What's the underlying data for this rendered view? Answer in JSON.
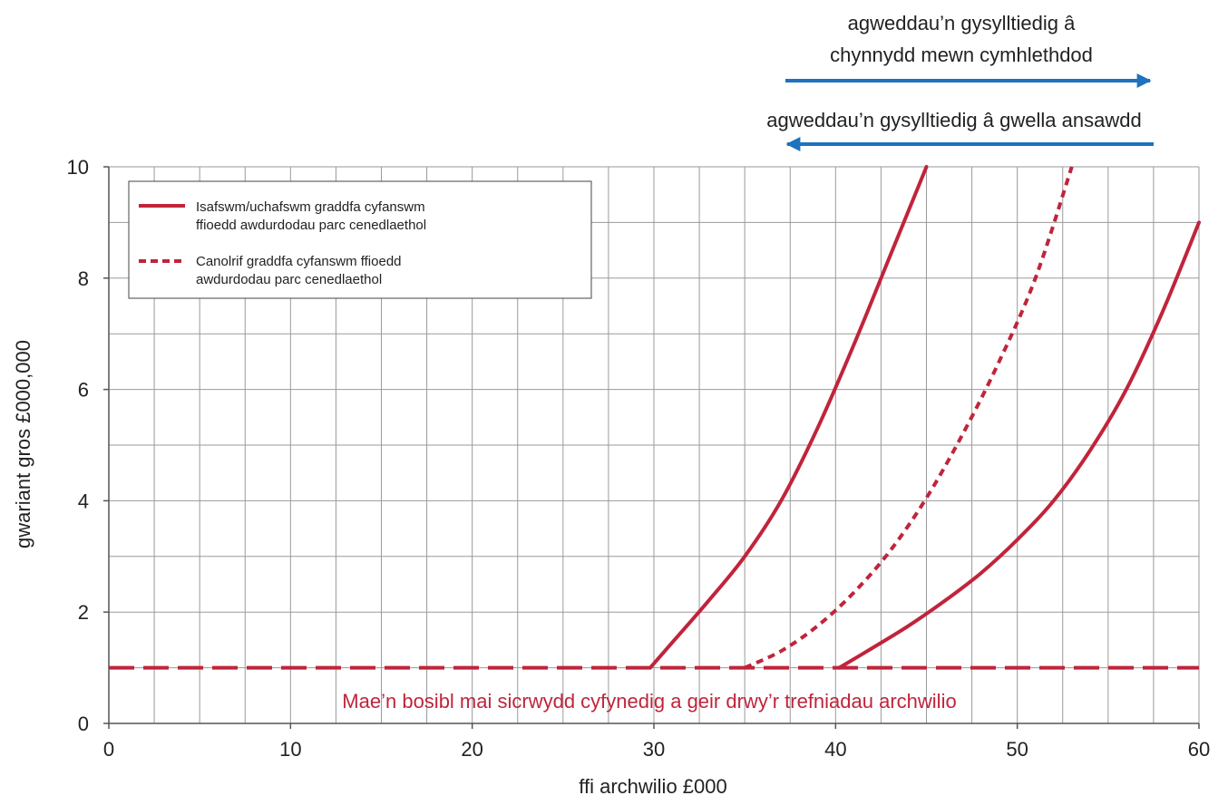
{
  "chart_data": {
    "type": "line",
    "xlabel": "ffi archwilio £000",
    "ylabel": "gwariant gros £000,000",
    "xlim": [
      0,
      60
    ],
    "ylim": [
      0,
      10
    ],
    "x_ticks": [
      0,
      10,
      20,
      30,
      40,
      50,
      60
    ],
    "y_ticks": [
      0,
      2,
      4,
      6,
      8,
      10
    ],
    "grid": true,
    "grid_x_step": 2.5,
    "grid_y_step": 1,
    "legend_position": "top-left",
    "legend": [
      {
        "label_lines": [
          "Isafswm/uchafswm graddfa cyfanswm",
          "ffioedd awdurdodau parc cenedlaethol"
        ],
        "style": "solid"
      },
      {
        "label_lines": [
          "Canolrif graddfa cyfanswm ffioedd",
          "awdurdodau parc cenedlaethol"
        ],
        "style": "dotted"
      }
    ],
    "series": [
      {
        "style": "solid",
        "color": "#c0243b",
        "points": [
          [
            29.8,
            1.0
          ],
          [
            31,
            1.45
          ],
          [
            33,
            2.2
          ],
          [
            35,
            3.0
          ],
          [
            37,
            4.0
          ],
          [
            39,
            5.3
          ],
          [
            41,
            6.8
          ],
          [
            43,
            8.4
          ],
          [
            45,
            10.0
          ]
        ]
      },
      {
        "style": "dotted",
        "color": "#c0243b",
        "points": [
          [
            35,
            1.0
          ],
          [
            37,
            1.3
          ],
          [
            39,
            1.75
          ],
          [
            41,
            2.35
          ],
          [
            43,
            3.1
          ],
          [
            45,
            4.05
          ],
          [
            47,
            5.2
          ],
          [
            49,
            6.5
          ],
          [
            51,
            8.0
          ],
          [
            53,
            10.0
          ]
        ]
      },
      {
        "style": "solid",
        "color": "#c0243b",
        "points": [
          [
            40.2,
            1.0
          ],
          [
            42,
            1.35
          ],
          [
            44,
            1.75
          ],
          [
            46,
            2.2
          ],
          [
            48,
            2.7
          ],
          [
            50,
            3.3
          ],
          [
            52,
            4.0
          ],
          [
            54,
            4.9
          ],
          [
            56,
            6.0
          ],
          [
            58,
            7.4
          ],
          [
            60,
            9.0
          ]
        ]
      }
    ],
    "threshold": {
      "y": 1,
      "x_range": [
        0,
        60
      ],
      "style": "long-dash",
      "color": "#c0243b"
    },
    "annotations": {
      "top_lines": [
        "agweddau’n gysylltiedig â",
        "chynnydd mewn cymhlethdod"
      ],
      "top_arrow_direction": "right",
      "bottom_line": "agweddau’n gysylltiedig â gwella ansawdd",
      "bottom_arrow_direction": "left",
      "arrow_color": "#1f72bd",
      "note": "Mae’n bosibl mai sicrwydd cyfynedig a geir drwy’r trefniadau archwilio",
      "note_color": "#c0243b"
    }
  }
}
